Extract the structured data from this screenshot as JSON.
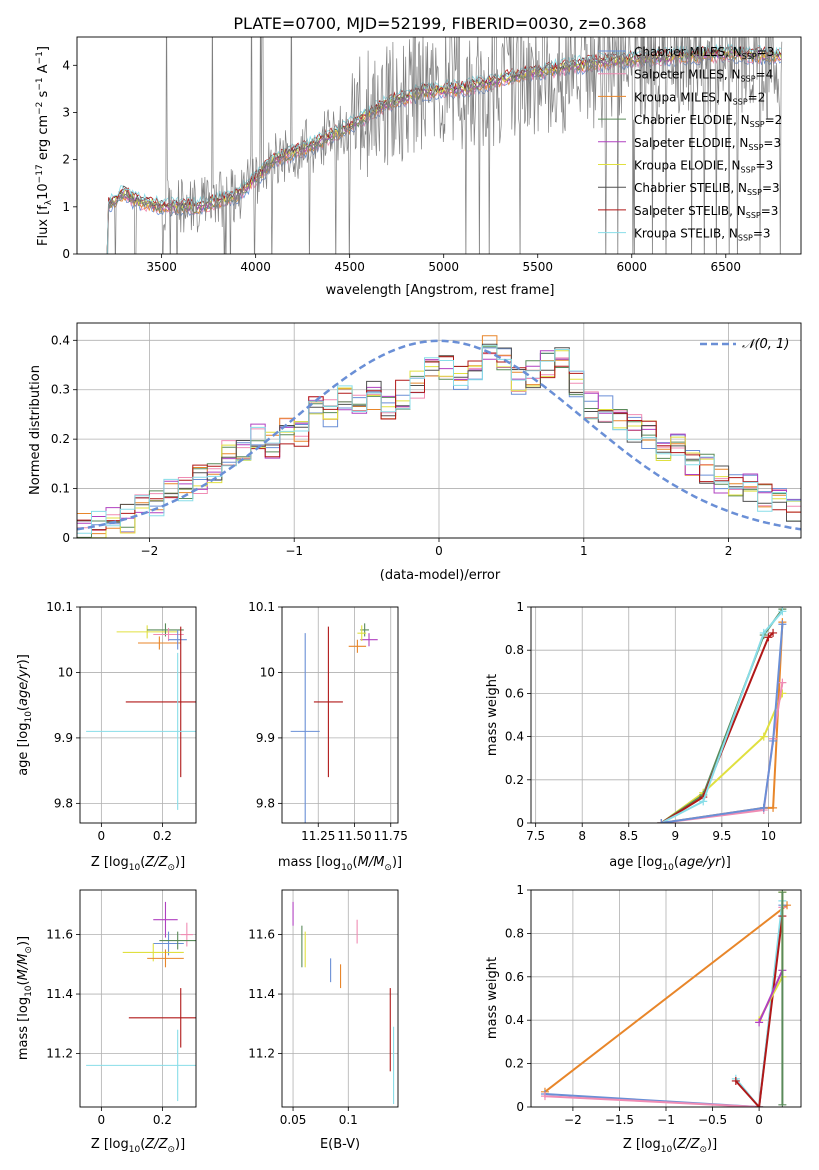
{
  "chart_data": [
    {
      "type": "line",
      "id": "spectrum",
      "title": "PLATE=0700, MJD=52199, FIBERID=0030, z=0.368",
      "xlabel": "wavelength [Angstrom, rest frame]",
      "ylabel": "Flux [f$_\\lambda$10$^{-17}$ erg cm$^{-2}$ s$^{-1}$ A$^{-1}$]",
      "ylabel_parts": [
        "Flux [f",
        "λ",
        "10",
        "−17",
        " erg cm",
        "−2",
        " s",
        "−1",
        " A",
        "−1",
        "]"
      ],
      "xlim": [
        3050,
        6900
      ],
      "ylim": [
        0,
        4.6
      ],
      "xticks": [
        3500,
        4000,
        4500,
        5000,
        5500,
        6000,
        6500
      ],
      "yticks": [
        0,
        1,
        2,
        3,
        4
      ],
      "data_shape": {
        "wavelength": [
          3210,
          3300,
          3350,
          3500,
          3700,
          3900,
          3960,
          4100,
          4300,
          4500,
          4700,
          4900,
          5100,
          5300,
          5500,
          5700,
          5900,
          6100,
          6300,
          6500,
          6800
        ],
        "flux": [
          1.0,
          1.3,
          1.15,
          1.0,
          1.0,
          1.25,
          1.45,
          2.0,
          2.3,
          2.7,
          3.2,
          3.45,
          3.5,
          3.7,
          3.85,
          4.0,
          4.1,
          4.15,
          4.2,
          4.25,
          4.2
        ]
      },
      "series": [
        {
          "name": "Chabrier MILES, N$_{SSP}$=3",
          "label": {
            "pre": "Chabrier MILES, N",
            "sub": "SSP",
            "post": "=3"
          },
          "color": "#6a8fd6"
        },
        {
          "name": "Salpeter MILES, N$_{SSP}$=4",
          "label": {
            "pre": "Salpeter MILES, N",
            "sub": "SSP",
            "post": "=4"
          },
          "color": "#f08cb4"
        },
        {
          "name": "Kroupa MILES, N$_{SSP}$=2",
          "label": {
            "pre": "Kroupa MILES, N",
            "sub": "SSP",
            "post": "=2"
          },
          "color": "#e8862a"
        },
        {
          "name": "Chabrier ELODIE, N$_{SSP}$=2",
          "label": {
            "pre": "Chabrier ELODIE, N",
            "sub": "SSP",
            "post": "=2"
          },
          "color": "#5a8a5a"
        },
        {
          "name": "Salpeter ELODIE, N$_{SSP}$=3",
          "label": {
            "pre": "Salpeter ELODIE, N",
            "sub": "SSP",
            "post": "=3"
          },
          "color": "#b040c0"
        },
        {
          "name": "Kroupa ELODIE, N$_{SSP}$=3",
          "label": {
            "pre": "Kroupa ELODIE, N",
            "sub": "SSP",
            "post": "=3"
          },
          "color": "#e0e040"
        },
        {
          "name": "Chabrier STELIB, N$_{SSP}$=3",
          "label": {
            "pre": "Chabrier STELIB, N",
            "sub": "SSP",
            "post": "=3"
          },
          "color": "#505050"
        },
        {
          "name": "Salpeter STELIB, N$_{SSP}$=3",
          "label": {
            "pre": "Salpeter STELIB, N",
            "sub": "SSP",
            "post": "=3"
          },
          "color": "#b01818"
        },
        {
          "name": "Kroupa STELIB, N$_{SSP}$=3",
          "label": {
            "pre": "Kroupa STELIB, N",
            "sub": "SSP",
            "post": "=3"
          },
          "color": "#88dde8"
        }
      ],
      "data_color": "#808080",
      "legend": "upper right"
    },
    {
      "type": "step",
      "id": "residuals",
      "xlabel": "(data-model)/error",
      "ylabel": "Normed distribution",
      "xlim": [
        -2.5,
        2.5
      ],
      "ylim": [
        0,
        0.435
      ],
      "xticks": [
        -2,
        -1,
        0,
        1,
        2
      ],
      "yticks": [
        0.0,
        0.1,
        0.2,
        0.3,
        0.4
      ],
      "bin_width": 0.1,
      "histogram_centers": [
        -2.45,
        -2.35,
        -2.25,
        -2.15,
        -2.05,
        -1.95,
        -1.85,
        -1.75,
        -1.65,
        -1.55,
        -1.45,
        -1.35,
        -1.25,
        -1.15,
        -1.05,
        -0.95,
        -0.85,
        -0.75,
        -0.65,
        -0.55,
        -0.45,
        -0.35,
        -0.25,
        -0.15,
        -0.05,
        0.05,
        0.15,
        0.25,
        0.35,
        0.45,
        0.55,
        0.65,
        0.75,
        0.85,
        0.95,
        1.05,
        1.15,
        1.25,
        1.35,
        1.45,
        1.55,
        1.65,
        1.75,
        1.85,
        1.95,
        2.05,
        2.15,
        2.25,
        2.35,
        2.45
      ],
      "histogram_values": [
        0.025,
        0.03,
        0.04,
        0.04,
        0.06,
        0.07,
        0.09,
        0.1,
        0.12,
        0.13,
        0.17,
        0.18,
        0.21,
        0.19,
        0.22,
        0.21,
        0.26,
        0.25,
        0.28,
        0.27,
        0.29,
        0.27,
        0.29,
        0.31,
        0.34,
        0.35,
        0.33,
        0.34,
        0.38,
        0.37,
        0.32,
        0.33,
        0.35,
        0.36,
        0.31,
        0.27,
        0.26,
        0.23,
        0.22,
        0.21,
        0.18,
        0.19,
        0.15,
        0.14,
        0.12,
        0.11,
        0.1,
        0.08,
        0.07,
        0.06
      ],
      "reference_curve": {
        "name": "$\\mathcal{N}(0,1)$",
        "label": "𝒩(0, 1)",
        "color": "#6a8fd6",
        "style": "dashed"
      },
      "legend": "upper right"
    },
    {
      "type": "scatter",
      "id": "age-vs-Z",
      "xlabel": "Z [log$_{10}$($Z/Z_\\odot$)]",
      "ylabel": "age  [log$_{10}$($age/yr$)]",
      "xlim": [
        -0.07,
        0.31
      ],
      "ylim": [
        9.77,
        10.1
      ],
      "xticks": [
        0.0,
        0.2
      ],
      "yticks": [
        9.8,
        9.9,
        10.0,
        10.1
      ],
      "points": [
        {
          "x": 0.15,
          "y": 10.062,
          "xerr": 0.1,
          "yerr": 0.01,
          "color": "#e0e040"
        },
        {
          "x": 0.21,
          "y": 10.065,
          "xerr": 0.06,
          "yerr": 0.01,
          "color": "#5a8a5a"
        },
        {
          "x": 0.22,
          "y": 10.058,
          "xerr": 0.05,
          "yerr": 0.01,
          "color": "#f08cb4"
        },
        {
          "x": 0.19,
          "y": 10.045,
          "xerr": 0.07,
          "yerr": 0.01,
          "color": "#e8862a"
        },
        {
          "x": 0.25,
          "y": 10.05,
          "xerr": 0.03,
          "yerr": 0.015,
          "color": "#6a8fd6"
        },
        {
          "x": 0.26,
          "y": 9.955,
          "xerr": 0.18,
          "yerr": 0.115,
          "color": "#b01818"
        },
        {
          "x": 0.25,
          "y": 9.91,
          "xerr": 0.3,
          "yerr": 0.12,
          "color": "#88dde8"
        }
      ]
    },
    {
      "type": "scatter",
      "id": "age-vs-mass",
      "xlabel": "mass [log$_{10}$($M/M_\\odot$)]",
      "ylabel": "",
      "xlim": [
        11.0,
        11.8
      ],
      "ylim": [
        9.77,
        10.1
      ],
      "xticks": [
        11.25,
        11.5,
        11.75
      ],
      "xtick_labels": [
        "11.25",
        "11.50",
        "11.75"
      ],
      "yticks": [
        9.8,
        9.9,
        10.0,
        10.1
      ],
      "points": [
        {
          "x": 11.57,
          "y": 10.065,
          "xerr": 0.03,
          "yerr": 0.01,
          "color": "#5a8a5a"
        },
        {
          "x": 11.6,
          "y": 10.05,
          "xerr": 0.06,
          "yerr": 0.01,
          "color": "#b040c0"
        },
        {
          "x": 11.52,
          "y": 10.04,
          "xerr": 0.06,
          "yerr": 0.01,
          "color": "#e8862a"
        },
        {
          "x": 11.55,
          "y": 10.06,
          "xerr": 0.03,
          "yerr": 0.012,
          "color": "#e0e040"
        },
        {
          "x": 11.32,
          "y": 9.955,
          "xerr": 0.1,
          "yerr": 0.115,
          "color": "#b01818"
        },
        {
          "x": 11.16,
          "y": 9.91,
          "xerr": 0.1,
          "yerr": 0.15,
          "color": "#6a8fd6"
        }
      ]
    },
    {
      "type": "line",
      "id": "mass-weight-vs-age",
      "xlabel": "age  [log$_{10}$($age/yr$)]",
      "ylabel": "mass weight",
      "xlim": [
        7.45,
        10.35
      ],
      "ylim": [
        0,
        1.0
      ],
      "xticks": [
        7.5,
        8.0,
        8.5,
        9.0,
        9.5,
        10.0
      ],
      "yticks": [
        0.0,
        0.2,
        0.4,
        0.6,
        0.8,
        1.0
      ],
      "series": [
        {
          "x": [
            8.85,
            9.3,
            9.95,
            10.15
          ],
          "y": [
            0.0,
            0.14,
            0.4,
            0.6
          ],
          "color": "#e0e040"
        },
        {
          "x": [
            8.85,
            9.3,
            9.95,
            10.15
          ],
          "y": [
            0.0,
            0.13,
            0.87,
            0.99
          ],
          "color": "#5a8a5a"
        },
        {
          "x": [
            8.85,
            9.3,
            10.0,
            10.05
          ],
          "y": [
            0.0,
            0.12,
            0.86,
            0.88
          ],
          "color": "#b01818"
        },
        {
          "x": [
            8.85,
            9.3,
            9.95,
            10.15
          ],
          "y": [
            0.0,
            0.1,
            0.88,
            0.98
          ],
          "color": "#88dde8"
        },
        {
          "x": [
            8.85,
            9.95,
            10.05,
            10.15
          ],
          "y": [
            0.0,
            0.07,
            0.07,
            0.93
          ],
          "color": "#e8862a"
        },
        {
          "x": [
            8.85,
            9.95,
            10.05,
            10.15
          ],
          "y": [
            0.0,
            0.06,
            0.39,
            0.65
          ],
          "color": "#f08cb4"
        },
        {
          "x": [
            8.85,
            9.95,
            10.05,
            10.15
          ],
          "y": [
            0.0,
            0.07,
            0.38,
            0.92
          ],
          "color": "#6a8fd6"
        }
      ]
    },
    {
      "type": "scatter",
      "id": "mass-vs-Z",
      "xlabel": "Z [log$_{10}$($Z/Z_\\odot$)]",
      "ylabel": "mass [log$_{10}$($M/M_\\odot$)]",
      "xlim": [
        -0.07,
        0.31
      ],
      "ylim": [
        11.02,
        11.75
      ],
      "xticks": [
        0.0,
        0.2
      ],
      "yticks": [
        11.2,
        11.4,
        11.6
      ],
      "points": [
        {
          "x": 0.21,
          "y": 11.65,
          "xerr": 0.04,
          "yerr": 0.06,
          "color": "#b040c0"
        },
        {
          "x": 0.28,
          "y": 11.6,
          "xerr": 0.02,
          "yerr": 0.04,
          "color": "#f08cb4"
        },
        {
          "x": 0.22,
          "y": 11.57,
          "xerr": 0.05,
          "yerr": 0.04,
          "color": "#6a8fd6"
        },
        {
          "x": 0.25,
          "y": 11.58,
          "xerr": 0.06,
          "yerr": 0.03,
          "color": "#5a8a5a"
        },
        {
          "x": 0.17,
          "y": 11.54,
          "xerr": 0.1,
          "yerr": 0.03,
          "color": "#e0e040"
        },
        {
          "x": 0.21,
          "y": 11.52,
          "xerr": 0.06,
          "yerr": 0.03,
          "color": "#e8862a"
        },
        {
          "x": 0.26,
          "y": 11.32,
          "xerr": 0.17,
          "yerr": 0.1,
          "color": "#b01818"
        },
        {
          "x": 0.25,
          "y": 11.16,
          "xerr": 0.3,
          "yerr": 0.12,
          "color": "#88dde8"
        }
      ]
    },
    {
      "type": "errorbar",
      "id": "mass-vs-ebv",
      "xlabel": "E(B-V)",
      "ylabel": "",
      "xlim": [
        0.04,
        0.145
      ],
      "ylim": [
        11.02,
        11.75
      ],
      "xticks": [
        0.05,
        0.1
      ],
      "yticks": [
        11.2,
        11.4,
        11.6
      ],
      "points": [
        {
          "x": 0.05,
          "y": 11.67,
          "yerr": 0.04,
          "color": "#b040c0"
        },
        {
          "x": 0.058,
          "y": 11.56,
          "yerr": 0.07,
          "color": "#5a8a5a"
        },
        {
          "x": 0.061,
          "y": 11.55,
          "yerr": 0.06,
          "color": "#e0e040"
        },
        {
          "x": 0.084,
          "y": 11.48,
          "yerr": 0.04,
          "color": "#6a8fd6"
        },
        {
          "x": 0.093,
          "y": 11.46,
          "yerr": 0.04,
          "color": "#e8862a"
        },
        {
          "x": 0.108,
          "y": 11.61,
          "yerr": 0.04,
          "color": "#f08cb4"
        },
        {
          "x": 0.138,
          "y": 11.28,
          "yerr": 0.14,
          "color": "#b01818"
        },
        {
          "x": 0.141,
          "y": 11.16,
          "yerr": 0.13,
          "color": "#88dde8"
        }
      ]
    },
    {
      "type": "line",
      "id": "mass-weight-vs-Z",
      "xlabel": "Z [log$_{10}$($Z/Z_\\odot$)]",
      "ylabel": "mass weight",
      "xlim": [
        -2.45,
        0.45
      ],
      "ylim": [
        0,
        1.0
      ],
      "xticks": [
        -2.0,
        -1.5,
        -1.0,
        -0.5,
        0.0
      ],
      "yticks": [
        0.0,
        0.2,
        0.4,
        0.6,
        0.8,
        1.0
      ],
      "series": [
        {
          "x": [
            -2.3,
            0.3
          ],
          "y": [
            0.07,
            0.93
          ],
          "color": "#e8862a"
        },
        {
          "x": [
            -2.3,
            0.0,
            0.25
          ],
          "y": [
            0.06,
            0.0,
            0.93
          ],
          "color": "#6a8fd6"
        },
        {
          "x": [
            -2.3,
            0.0,
            0.25
          ],
          "y": [
            0.05,
            0.0,
            0.92
          ],
          "color": "#f08cb4"
        },
        {
          "x": [
            -0.25,
            0.0,
            0.25
          ],
          "y": [
            0.13,
            0.0,
            0.95
          ],
          "color": "#88dde8"
        },
        {
          "x": [
            -0.25,
            0.0,
            0.25
          ],
          "y": [
            0.12,
            0.0,
            0.88
          ],
          "color": "#b01818"
        },
        {
          "x": [
            0.0,
            0.25,
            0.25
          ],
          "y": [
            0.4,
            0.6,
            0.99
          ],
          "color": "#e0e040"
        },
        {
          "x": [
            0.0,
            0.25
          ],
          "y": [
            0.39,
            0.63
          ],
          "color": "#b040c0"
        },
        {
          "x": [
            0.25,
            0.25
          ],
          "y": [
            0.01,
            0.99
          ],
          "color": "#5a8a5a"
        }
      ]
    }
  ]
}
